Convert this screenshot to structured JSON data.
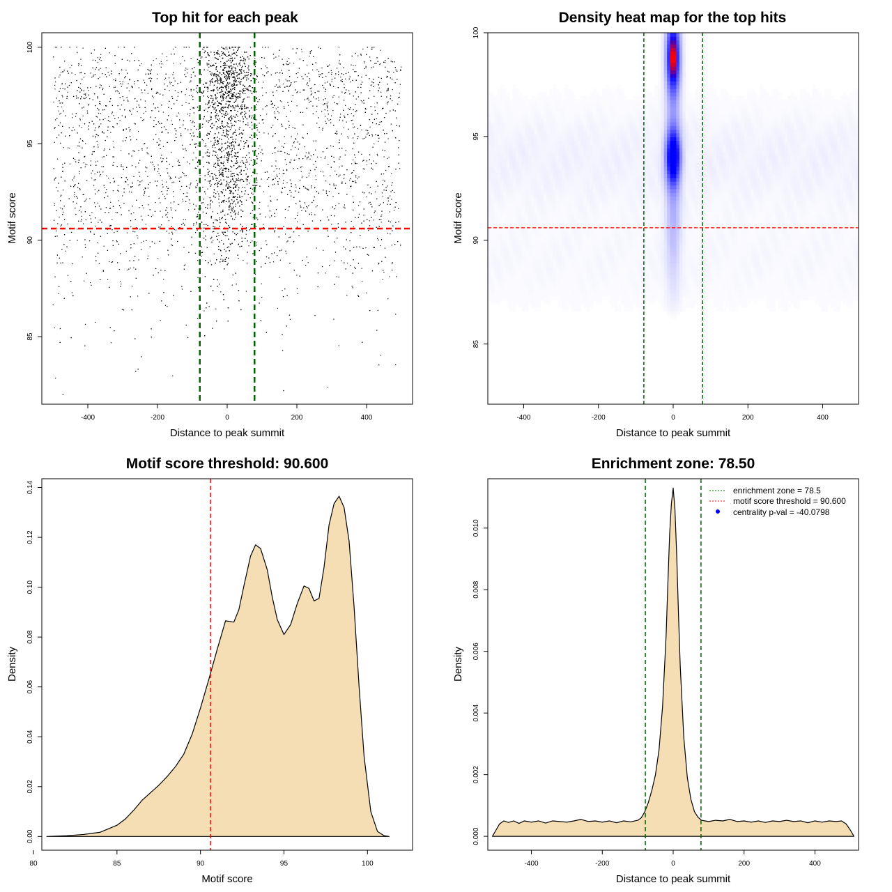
{
  "chart_data": [
    {
      "type": "scatter",
      "title": "Top hit for each peak",
      "xlabel": "Distance to peak summit",
      "ylabel": "Motif score",
      "xlim": [
        -532,
        532
      ],
      "ylim": [
        81.5,
        100.75
      ],
      "xticks": [
        "-400",
        "-200",
        "0",
        "200",
        "400"
      ],
      "xtick_values": [
        -400,
        -200,
        0,
        200,
        400
      ],
      "yticks": [
        "85",
        "90",
        "95",
        "100"
      ],
      "ytick_values": [
        85,
        90,
        95,
        100
      ],
      "x_range": [
        -500,
        500
      ],
      "y_range": [
        82,
        100
      ],
      "center_x_sd": 35,
      "vlines": [
        -78.5,
        78.5
      ],
      "vline_color": "#006400",
      "hline": 90.6,
      "hline_color": "#ff0000",
      "point_color": "#000000"
    },
    {
      "type": "heatmap",
      "title": "Density heat map for the top hits",
      "xlabel": "Distance to peak summit",
      "ylabel": "Motif score",
      "xlim": [
        -496,
        496
      ],
      "ylim": [
        82.1,
        100.0
      ],
      "xticks": [
        "-400",
        "-200",
        "0",
        "200",
        "400"
      ],
      "xtick_values": [
        -400,
        -200,
        0,
        200,
        400
      ],
      "yticks": [
        "85",
        "90",
        "95",
        "100"
      ],
      "ytick_values": [
        85,
        90,
        95,
        100
      ],
      "hotspots": [
        {
          "x": 0,
          "y": 98.8,
          "sx": 12,
          "sy": 1.1,
          "level": "high"
        },
        {
          "x": 0,
          "y": 94.0,
          "sx": 13,
          "sy": 0.9,
          "level": "medium"
        }
      ],
      "colors": {
        "low": "#ffffff",
        "medium": "#0000ff",
        "high": "#ff0000"
      },
      "vlines": [
        -78.5,
        78.5
      ],
      "vline_color": "#006400",
      "hline": 90.6,
      "hline_color": "#ff0000"
    },
    {
      "type": "area",
      "title": "Motif score threshold: 90.600",
      "xlabel": "Motif score",
      "ylabel": "Density",
      "xlim": [
        80.5,
        102.7
      ],
      "ylim": [
        -0.0055,
        0.1435
      ],
      "xticks": [
        "80",
        "85",
        "90",
        "95",
        "100"
      ],
      "xtick_values": [
        80,
        85,
        90,
        95,
        100
      ],
      "yticks": [
        "0.00",
        "0.02",
        "0.04",
        "0.06",
        "0.08",
        "0.10",
        "0.12",
        "0.14"
      ],
      "ytick_values": [
        0,
        0.02,
        0.04,
        0.06,
        0.08,
        0.1,
        0.12,
        0.14
      ],
      "x": [
        80.8,
        82,
        83,
        84,
        85,
        85.5,
        86,
        86.5,
        87,
        87.5,
        88,
        88.5,
        89,
        89.5,
        90,
        90.5,
        91,
        91.5,
        92,
        92.3,
        92.6,
        93,
        93.3,
        93.6,
        94,
        94.3,
        94.6,
        95,
        95.4,
        95.8,
        96.2,
        96.5,
        96.8,
        97.1,
        97.4,
        97.7,
        98,
        98.3,
        98.6,
        98.9,
        99.2,
        99.5,
        99.8,
        100.2,
        100.6,
        101.0,
        101.3
      ],
      "y": [
        0.0,
        0.0003,
        0.0008,
        0.0017,
        0.0045,
        0.007,
        0.0105,
        0.0145,
        0.0175,
        0.0205,
        0.024,
        0.028,
        0.033,
        0.041,
        0.0515,
        0.063,
        0.075,
        0.0865,
        0.086,
        0.091,
        0.1005,
        0.1125,
        0.117,
        0.1155,
        0.107,
        0.096,
        0.087,
        0.081,
        0.085,
        0.0935,
        0.1005,
        0.0995,
        0.0945,
        0.0955,
        0.108,
        0.125,
        0.1335,
        0.1365,
        0.132,
        0.1185,
        0.092,
        0.06,
        0.032,
        0.01,
        0.002,
        0.0003,
        0.0
      ],
      "fill_color": "#f5deb3",
      "vline": 90.6,
      "vline_color": "#ff0000"
    },
    {
      "type": "area",
      "title": "Enrichment zone: 78.50",
      "xlabel": "Distance to peak summit",
      "ylabel": "Density",
      "xlim": [
        -523,
        523
      ],
      "ylim": [
        -0.00045,
        0.0116
      ],
      "xticks": [
        "-400",
        "-200",
        "0",
        "200",
        "400"
      ],
      "xtick_values": [
        -400,
        -200,
        0,
        200,
        400
      ],
      "yticks": [
        "0.000",
        "0.002",
        "0.004",
        "0.006",
        "0.008",
        "0.010"
      ],
      "ytick_values": [
        0,
        0.002,
        0.004,
        0.006,
        0.008,
        0.01
      ],
      "x": [
        -510,
        -500,
        -490,
        -478,
        -465,
        -450,
        -435,
        -420,
        -400,
        -380,
        -360,
        -340,
        -320,
        -300,
        -280,
        -260,
        -240,
        -220,
        -200,
        -180,
        -160,
        -140,
        -120,
        -100,
        -90,
        -80,
        -70,
        -60,
        -50,
        -40,
        -30,
        -20,
        -15,
        -10,
        -5,
        0,
        5,
        10,
        15,
        20,
        30,
        40,
        50,
        60,
        70,
        80,
        90,
        100,
        120,
        140,
        160,
        180,
        200,
        220,
        240,
        260,
        280,
        300,
        320,
        340,
        360,
        380,
        400,
        420,
        440,
        460,
        475,
        488,
        500,
        510
      ],
      "y": [
        0.0,
        0.0002,
        0.0004,
        0.0005,
        0.00045,
        0.0005,
        0.00042,
        0.0005,
        0.00046,
        0.0005,
        0.00043,
        0.0005,
        0.00048,
        0.00046,
        0.0005,
        0.00055,
        0.00048,
        0.0005,
        0.00046,
        0.0005,
        0.00044,
        0.0005,
        0.00047,
        0.00052,
        0.0006,
        0.0008,
        0.0011,
        0.0015,
        0.002,
        0.0028,
        0.0042,
        0.0065,
        0.0082,
        0.0098,
        0.0108,
        0.0113,
        0.0106,
        0.0091,
        0.0072,
        0.0055,
        0.0032,
        0.0019,
        0.0012,
        0.0008,
        0.00062,
        0.00052,
        0.0005,
        0.00048,
        0.00052,
        0.0005,
        0.00055,
        0.00048,
        0.0005,
        0.00046,
        0.0005,
        0.00045,
        0.0005,
        0.00048,
        0.00052,
        0.00048,
        0.0005,
        0.00044,
        0.0005,
        0.00046,
        0.0005,
        0.00048,
        0.0005,
        0.0004,
        0.0002,
        0.0
      ],
      "fill_color": "#f5deb3",
      "vlines": [
        -78.5,
        78.5
      ],
      "vline_color": "#006400",
      "legend": [
        {
          "label": "enrichment zone = 78.5",
          "color": "#006400",
          "style": "dotted-line"
        },
        {
          "label": "motif score threshold = 90.600",
          "color": "#ff0000",
          "style": "dotted-line"
        },
        {
          "label": "centrality p-val = -40.0798",
          "color": "#0000ff",
          "style": "point"
        }
      ],
      "legend_position": "top-right"
    }
  ]
}
